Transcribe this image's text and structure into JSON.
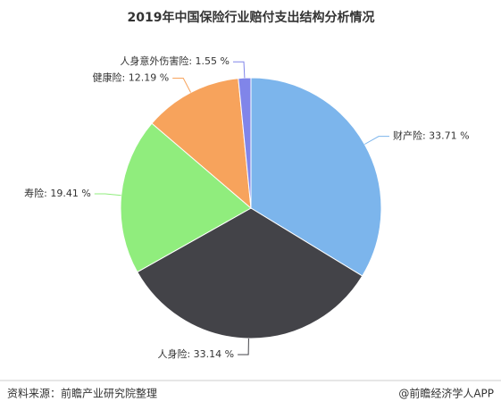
{
  "chart_data": {
    "type": "pie",
    "title": "2019年中国保险行业赔付支出结构分析情况",
    "values": [
      33.71,
      33.14,
      19.41,
      12.19,
      1.55
    ],
    "value_labels": [
      "财产险: 33.71 %",
      "人身险: 33.14 %",
      "寿险: 19.41 %",
      "健康险: 12.19 %",
      "人身意外伤害险: 1.55 %"
    ],
    "colors": [
      "#7cb5ec",
      "#434348",
      "#90ed7d",
      "#f7a35c",
      "#8085e9"
    ]
  },
  "footer": {
    "source": "资料来源：前瞻产业研究院整理",
    "brand": "@前瞻经济学人APP"
  }
}
